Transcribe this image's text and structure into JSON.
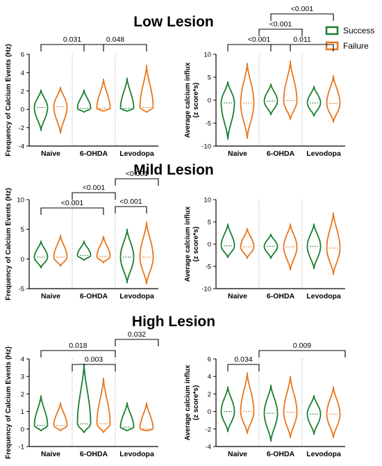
{
  "sections": [
    "Low Lesion",
    "Mild Lesion",
    "High Lesion"
  ],
  "legend": [
    {
      "name": "Success",
      "color": "#1a7f2e"
    },
    {
      "name": "Failure",
      "color": "#e8761c"
    }
  ],
  "chart_data": [
    {
      "type": "violin",
      "section": "Low Lesion",
      "panel": "left",
      "categories": [
        "Naive",
        "6-OHDA",
        "Levodopa"
      ],
      "ylabel": "Frequency of Calcium Events (Hz)",
      "ylim": [
        -4,
        6
      ],
      "yticks": [
        -4,
        -2,
        0,
        2,
        4,
        6
      ],
      "series": [
        {
          "name": "Success",
          "color": "#1a7f2e",
          "median": [
            0.2,
            0.1,
            0.1
          ],
          "min": [
            -2.3,
            -0.3,
            -0.2
          ],
          "max": [
            2.1,
            2.1,
            3.4
          ]
        },
        {
          "name": "Failure",
          "color": "#e8761c",
          "median": [
            0.3,
            0.1,
            0.2
          ],
          "min": [
            -2.6,
            -0.2,
            -0.3
          ],
          "max": [
            2.4,
            3.3,
            4.8
          ]
        }
      ],
      "significance": [
        {
          "from": 0,
          "to": 1,
          "label": "0.031"
        },
        {
          "from": 1,
          "to": 2,
          "label": "0.048"
        }
      ]
    },
    {
      "type": "violin",
      "section": "Low Lesion",
      "panel": "right",
      "categories": [
        "Naive",
        "6-OHDA",
        "Levodopa"
      ],
      "ylabel": "Average calcium influx (z score*s)",
      "ylim": [
        -10,
        10
      ],
      "yticks": [
        -10,
        -5,
        0,
        5,
        10
      ],
      "series": [
        {
          "name": "Success",
          "color": "#1a7f2e",
          "median": [
            -0.6,
            -0.2,
            -0.6
          ],
          "min": [
            -8.5,
            -3.2,
            -3.5
          ],
          "max": [
            4.0,
            3.5,
            3.0
          ]
        },
        {
          "name": "Failure",
          "color": "#e8761c",
          "median": [
            -0.6,
            -0.1,
            -0.7
          ],
          "min": [
            -8.3,
            -4.2,
            -4.8
          ],
          "max": [
            8.0,
            8.5,
            5.3
          ]
        }
      ],
      "significance": [
        {
          "from": 0,
          "to": 1,
          "label": "<0.001"
        },
        {
          "from": 1,
          "to": 2,
          "label": "0.011"
        },
        {
          "from": 0.5,
          "to": 1.5,
          "label": "<0.001"
        },
        {
          "from": 1,
          "to": 2,
          "label": "<0.001"
        }
      ]
    },
    {
      "type": "violin",
      "section": "Mild Lesion",
      "panel": "left",
      "categories": [
        "Naive",
        "6-OHDA",
        "Levodopa"
      ],
      "ylabel": "Frequency of Calcium Events (Hz)",
      "ylim": [
        -5,
        10
      ],
      "yticks": [
        -5,
        0,
        5,
        10
      ],
      "series": [
        {
          "name": "Success",
          "color": "#1a7f2e",
          "median": [
            0.3,
            0.6,
            0.3
          ],
          "min": [
            -1.5,
            -0.2,
            -4.0
          ],
          "max": [
            3.0,
            3.0,
            5.0
          ]
        },
        {
          "name": "Failure",
          "color": "#e8761c",
          "median": [
            0.3,
            0.4,
            0.3
          ],
          "min": [
            -1.2,
            -0.6,
            -4.2
          ],
          "max": [
            4.0,
            3.8,
            6.2
          ]
        }
      ],
      "significance": [
        {
          "from": 0,
          "to": 1,
          "label": "<0.001"
        },
        {
          "from": 1.5,
          "to": 2,
          "label": "<0.001"
        },
        {
          "from": 0.5,
          "to": 1.5,
          "label": "<0.001"
        },
        {
          "from": 1.5,
          "to": 2.5,
          "label": "<0.001"
        }
      ]
    },
    {
      "type": "violin",
      "section": "Mild Lesion",
      "panel": "right",
      "categories": [
        "Naive",
        "6-OHDA",
        "Levodopa"
      ],
      "ylabel": "Average calcium influx (z score*s)",
      "ylim": [
        -10,
        10
      ],
      "yticks": [
        -10,
        -5,
        0,
        5,
        10
      ],
      "series": [
        {
          "name": "Success",
          "color": "#1a7f2e",
          "median": [
            -0.4,
            -0.5,
            -0.5
          ],
          "min": [
            -3.0,
            -3.2,
            -5.5
          ],
          "max": [
            4.5,
            2.2,
            4.5
          ]
        },
        {
          "name": "Failure",
          "color": "#e8761c",
          "median": [
            -0.6,
            -0.6,
            -0.9
          ],
          "min": [
            -3.2,
            -5.8,
            -6.8
          ],
          "max": [
            3.5,
            4.5,
            7.0
          ]
        }
      ],
      "significance": []
    },
    {
      "type": "violin",
      "section": "High Lesion",
      "panel": "left",
      "categories": [
        "Naive",
        "6-OHDA",
        "Levodopa"
      ],
      "ylabel": "Frequency of Calcium Events (Hz)",
      "ylim": [
        -1,
        4
      ],
      "yticks": [
        -1,
        0,
        1,
        2,
        3,
        4
      ],
      "series": [
        {
          "name": "Success",
          "color": "#1a7f2e",
          "median": [
            0.2,
            0.3,
            0.1
          ],
          "min": [
            -0.1,
            -0.2,
            -0.1
          ],
          "max": [
            1.9,
            3.7,
            1.5
          ]
        },
        {
          "name": "Failure",
          "color": "#e8761c",
          "median": [
            0.2,
            0.3,
            0.0
          ],
          "min": [
            -0.1,
            -0.2,
            -0.1
          ],
          "max": [
            1.5,
            2.9,
            1.5
          ]
        }
      ],
      "significance": [
        {
          "from": 0,
          "to": 1.5,
          "label": "0.018"
        },
        {
          "from": 0.5,
          "to": 1.5,
          "label": "0.003"
        },
        {
          "from": 1.5,
          "to": 2.5,
          "label": "0.032"
        }
      ]
    },
    {
      "type": "violin",
      "section": "High Lesion",
      "panel": "right",
      "categories": [
        "Naive",
        "6-OHDA",
        "Levodopa"
      ],
      "ylabel": "Average calcium influx (z score*s)",
      "ylim": [
        -4,
        6
      ],
      "yticks": [
        -4,
        -2,
        0,
        2,
        4,
        6
      ],
      "series": [
        {
          "name": "Success",
          "color": "#1a7f2e",
          "median": [
            0.0,
            -0.2,
            -0.3
          ],
          "min": [
            -2.3,
            -3.4,
            -2.6
          ],
          "max": [
            2.8,
            3.0,
            1.8
          ]
        },
        {
          "name": "Failure",
          "color": "#e8761c",
          "median": [
            0.0,
            -0.1,
            -0.3
          ],
          "min": [
            -2.5,
            -3.0,
            -3.0
          ],
          "max": [
            4.4,
            4.0,
            2.8
          ]
        }
      ],
      "significance": [
        {
          "from": 0,
          "to": 0.5,
          "label": "0.034"
        },
        {
          "from": 0.5,
          "to": 2.5,
          "label": "0.009"
        }
      ]
    }
  ]
}
